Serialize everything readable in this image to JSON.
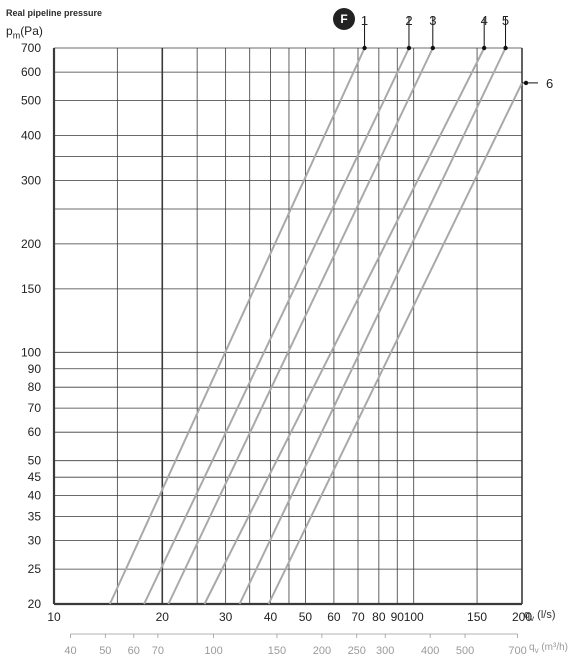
{
  "header": {
    "title": "Real pipeline pressure",
    "y_label_main": "p",
    "y_label_sub": "m",
    "y_label_unit": "(Pa)",
    "badge": "F"
  },
  "x_unit_primary": {
    "main": "q",
    "sub": "v",
    "unit": " (l/s)"
  },
  "x_unit_secondary": {
    "main": "q",
    "sub": "v",
    "unit": " (m³/h)"
  },
  "colors": {
    "grid": "#3a3a3a",
    "curve": "#a9a9a9",
    "secondary_axis": "#9a9a9a",
    "text": "#222222"
  },
  "chart_data": {
    "type": "line",
    "title": "Real pipeline pressure",
    "xlabel": "qv (l/s)",
    "ylabel": "pm(Pa)",
    "x_scale": "log",
    "y_scale": "log",
    "xlim": [
      10,
      200
    ],
    "ylim": [
      20,
      700
    ],
    "grid": true,
    "x_ticks": [
      10,
      20,
      30,
      40,
      50,
      60,
      70,
      80,
      90,
      100,
      150,
      200
    ],
    "x_tick_labels": [
      "10",
      "20",
      "30",
      "40",
      "50",
      "60",
      "70",
      "80",
      "90",
      "100",
      "150",
      "200"
    ],
    "x_minor_grid": [
      15,
      25,
      35,
      45
    ],
    "y_ticks": [
      20,
      25,
      30,
      35,
      40,
      45,
      50,
      60,
      70,
      80,
      90,
      100,
      150,
      200,
      300,
      400,
      500,
      600,
      700
    ],
    "y_tick_labels": [
      "20",
      "25",
      "30",
      "35",
      "40",
      "45",
      "50",
      "60",
      "70",
      "80",
      "90",
      "100",
      "150",
      "200",
      "300",
      "400",
      "500",
      "600",
      "700"
    ],
    "y_minor_grid": [
      250,
      350
    ],
    "secondary_x_axis": {
      "label": "qv (m³/h)",
      "ticks": [
        40,
        50,
        60,
        70,
        100,
        150,
        200,
        250,
        300,
        400,
        500,
        700
      ],
      "tick_labels": [
        "40",
        "50",
        "60",
        "70",
        "100",
        "150",
        "200",
        "250",
        "300",
        "400",
        "500",
        "700"
      ]
    },
    "series": [
      {
        "name": "1",
        "x": [
          14.3,
          73
        ],
        "y": [
          20,
          700
        ]
      },
      {
        "name": "2",
        "x": [
          17.8,
          97
        ],
        "y": [
          20,
          700
        ]
      },
      {
        "name": "3",
        "x": [
          20.8,
          113
        ],
        "y": [
          20,
          700
        ]
      },
      {
        "name": "4",
        "x": [
          26.2,
          157
        ],
        "y": [
          20,
          700
        ]
      },
      {
        "name": "5",
        "x": [
          32.8,
          180
        ],
        "y": [
          20,
          700
        ]
      },
      {
        "name": "6",
        "x": [
          39.5,
          200
        ],
        "y": [
          20,
          560
        ]
      }
    ]
  }
}
